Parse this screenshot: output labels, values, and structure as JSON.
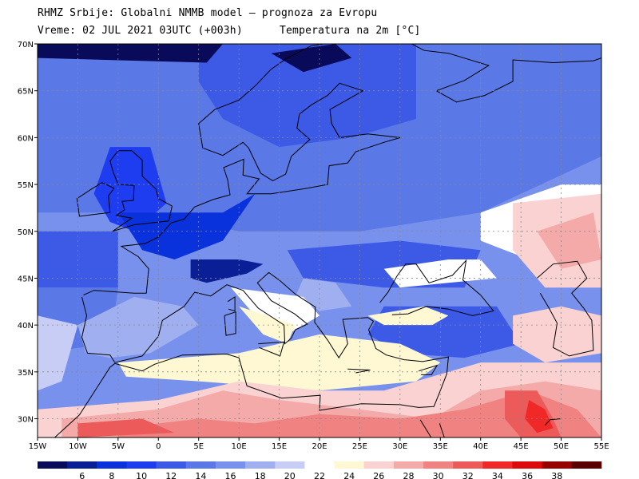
{
  "header": {
    "line1": "RHMZ Srbije: Globalni NMMB model – prognoza za Evropu",
    "line2": "Vreme: 02 JUL 2021 03UTC (+003h)",
    "line3": "Temperatura na 2m [°C]"
  },
  "map": {
    "lon_range": [
      -15,
      55
    ],
    "lat_range": [
      28,
      70
    ],
    "lon_ticks": [
      {
        "v": -15,
        "label": "15W"
      },
      {
        "v": -10,
        "label": "10W"
      },
      {
        "v": -5,
        "label": "5W"
      },
      {
        "v": 0,
        "label": "0"
      },
      {
        "v": 5,
        "label": "5E"
      },
      {
        "v": 10,
        "label": "10E"
      },
      {
        "v": 15,
        "label": "15E"
      },
      {
        "v": 20,
        "label": "20E"
      },
      {
        "v": 25,
        "label": "25E"
      },
      {
        "v": 30,
        "label": "30E"
      },
      {
        "v": 35,
        "label": "35E"
      },
      {
        "v": 40,
        "label": "40E"
      },
      {
        "v": 45,
        "label": "45E"
      },
      {
        "v": 50,
        "label": "50E"
      },
      {
        "v": 55,
        "label": "55E"
      }
    ],
    "lat_ticks": [
      {
        "v": 70,
        "label": "70N"
      },
      {
        "v": 65,
        "label": "65N"
      },
      {
        "v": 60,
        "label": "60N"
      },
      {
        "v": 55,
        "label": "55N"
      },
      {
        "v": 50,
        "label": "50N"
      },
      {
        "v": 45,
        "label": "45N"
      },
      {
        "v": 40,
        "label": "40N"
      },
      {
        "v": 35,
        "label": "35N"
      },
      {
        "v": 30,
        "label": "30N"
      }
    ],
    "grid": true
  },
  "colorbar": {
    "labels": [
      "6",
      "8",
      "10",
      "12",
      "14",
      "16",
      "18",
      "20",
      "22",
      "24",
      "26",
      "28",
      "30",
      "32",
      "34",
      "36",
      "38"
    ],
    "colors": [
      "#0a0a5a",
      "#0a1e96",
      "#0a32dc",
      "#1e3cf0",
      "#3c5ae6",
      "#5a78e6",
      "#7891ec",
      "#a0afef",
      "#c8cdf5",
      "#ffffff",
      "#fff8d2",
      "#fad2d2",
      "#f5aaaa",
      "#f08282",
      "#ec5a5a",
      "#f02828",
      "#dc0a0a",
      "#960000",
      "#5a0000"
    ]
  }
}
